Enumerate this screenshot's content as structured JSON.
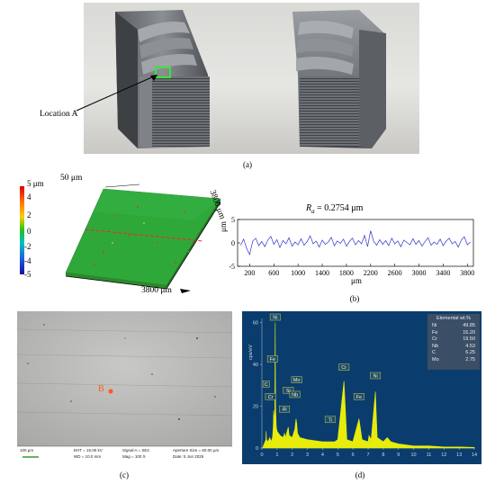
{
  "panel_a": {
    "annotation": "Location A",
    "caption": "(a)"
  },
  "panel_b": {
    "caption": "(b)",
    "map": {
      "colorbar_ticks": [
        "5 μm",
        "4",
        "2",
        "0",
        "-2",
        "-4",
        "-5"
      ],
      "top_label": "50 μm",
      "side_label": "3800 μm",
      "bottom_label": "3800 μm"
    },
    "profile": {
      "ra_prefix": "R",
      "ra_sub": "a",
      "ra_value": " = 0.2754 μm",
      "ylabel": "μm",
      "xlabel": "μm"
    }
  },
  "panel_c": {
    "caption": "(c)",
    "point_label": "B",
    "databar": {
      "scale": "100 μm",
      "eht": "EHT = 15.00 kV",
      "wd": "WD = 10.0 mm",
      "signal": "Signal A = SE2",
      "mag": "Mag = 100 X",
      "aperture": "Aperture Size = 60.00 μm",
      "date": "Date: 5 Jun 2025"
    }
  },
  "panel_d": {
    "caption": "(d)",
    "ylabel": "cps/eV",
    "table_title": "Elemental wt.%",
    "table": [
      {
        "el": "Ni",
        "v": "49.85"
      },
      {
        "el": "Fe",
        "v": "15.20"
      },
      {
        "el": "Cr",
        "v": "19.50"
      },
      {
        "el": "Nb",
        "v": "4.53"
      },
      {
        "el": "C",
        "v": "6.25"
      },
      {
        "el": "Mo",
        "v": "2.75"
      }
    ],
    "peak_labels": [
      "Ni",
      "Fe",
      "Cr",
      "C",
      "Si",
      "Nb",
      "Mo",
      "Al",
      "Ti",
      "Cr",
      "Fe",
      "Ni"
    ]
  },
  "chart_data": [
    {
      "type": "line",
      "title": "",
      "annotation": "Ra = 0.2754 μm",
      "xlabel": "μm",
      "ylabel": "μm",
      "xlim": [
        0,
        3900
      ],
      "ylim": [
        -5,
        5
      ],
      "x_ticks": [
        200,
        600,
        1000,
        1400,
        1800,
        2200,
        2600,
        3000,
        3400,
        3800
      ],
      "y_ticks": [
        -5,
        0,
        5
      ],
      "color": "#3333cc",
      "x": [
        50,
        100,
        150,
        200,
        250,
        300,
        350,
        400,
        450,
        500,
        550,
        600,
        650,
        700,
        750,
        800,
        850,
        900,
        950,
        1000,
        1050,
        1100,
        1150,
        1200,
        1250,
        1300,
        1350,
        1400,
        1450,
        1500,
        1550,
        1600,
        1650,
        1700,
        1750,
        1800,
        1850,
        1900,
        1950,
        2000,
        2050,
        2100,
        2150,
        2200,
        2250,
        2300,
        2350,
        2400,
        2450,
        2500,
        2550,
        2600,
        2650,
        2700,
        2750,
        2800,
        2850,
        2900,
        2950,
        3000,
        3050,
        3100,
        3150,
        3200,
        3250,
        3300,
        3350,
        3400,
        3450,
        3500,
        3550,
        3600,
        3650,
        3700,
        3750,
        3800,
        3850
      ],
      "y": [
        -0.5,
        0.8,
        -1.2,
        -2.5,
        0.4,
        1.0,
        -0.6,
        0.3,
        -0.8,
        0.6,
        1.4,
        -0.3,
        0.7,
        -1.0,
        0.5,
        -0.2,
        1.1,
        -0.7,
        0.2,
        -0.4,
        0.9,
        -0.5,
        0.3,
        1.5,
        -0.2,
        0.4,
        -0.9,
        0.6,
        -0.3,
        0.2,
        1.2,
        -0.6,
        0.4,
        -0.1,
        0.8,
        -0.7,
        0.3,
        1.0,
        -0.4,
        0.5,
        -0.2,
        1.6,
        -0.8,
        2.6,
        0.3,
        -0.5,
        0.7,
        -0.3,
        0.5,
        -0.6,
        1.0,
        -0.2,
        0.4,
        -0.8,
        0.6,
        0.1,
        -0.4,
        0.9,
        -0.3,
        0.5,
        -0.7,
        0.3,
        1.1,
        -0.5,
        0.2,
        -0.3,
        0.8,
        -0.6,
        0.4,
        1.0,
        -0.2,
        0.3,
        -0.9,
        0.6,
        1.3,
        -0.4,
        0.2
      ]
    },
    {
      "type": "line",
      "title": "",
      "xlabel": "",
      "ylabel": "cps/eV",
      "xlim": [
        0,
        14
      ],
      "ylim": [
        0,
        62
      ],
      "x_ticks": [
        0,
        1,
        2,
        3,
        4,
        5,
        6,
        7,
        8,
        9,
        10,
        11,
        12,
        13,
        14
      ],
      "y_ticks": [
        0,
        20,
        40,
        60
      ],
      "color": "#ffff00",
      "background": "#0a3d6e",
      "x": [
        0.05,
        0.15,
        0.26,
        0.28,
        0.3,
        0.4,
        0.52,
        0.6,
        0.7,
        0.75,
        0.78,
        0.85,
        0.88,
        0.9,
        0.95,
        1.0,
        1.2,
        1.4,
        1.49,
        1.55,
        1.74,
        1.8,
        2.0,
        2.17,
        2.25,
        2.29,
        2.35,
        2.5,
        3.0,
        4.0,
        4.5,
        4.8,
        5.0,
        5.41,
        5.6,
        6.0,
        6.4,
        6.6,
        7.0,
        7.06,
        7.2,
        7.48,
        7.6,
        8.0,
        8.26,
        8.5,
        9.0,
        10,
        11,
        12,
        13,
        14
      ],
      "y": [
        0,
        2,
        4,
        8,
        4,
        3,
        5,
        3,
        5,
        10,
        18,
        12,
        60,
        20,
        10,
        8,
        6,
        5,
        7,
        5,
        10,
        6,
        5,
        9,
        14,
        12,
        7,
        5,
        4,
        3,
        3,
        3,
        4,
        32,
        4,
        3,
        14,
        4,
        3,
        6,
        4,
        27,
        5,
        3,
        5,
        3,
        2,
        1,
        1,
        0.5,
        0.5,
        0.3
      ]
    }
  ]
}
